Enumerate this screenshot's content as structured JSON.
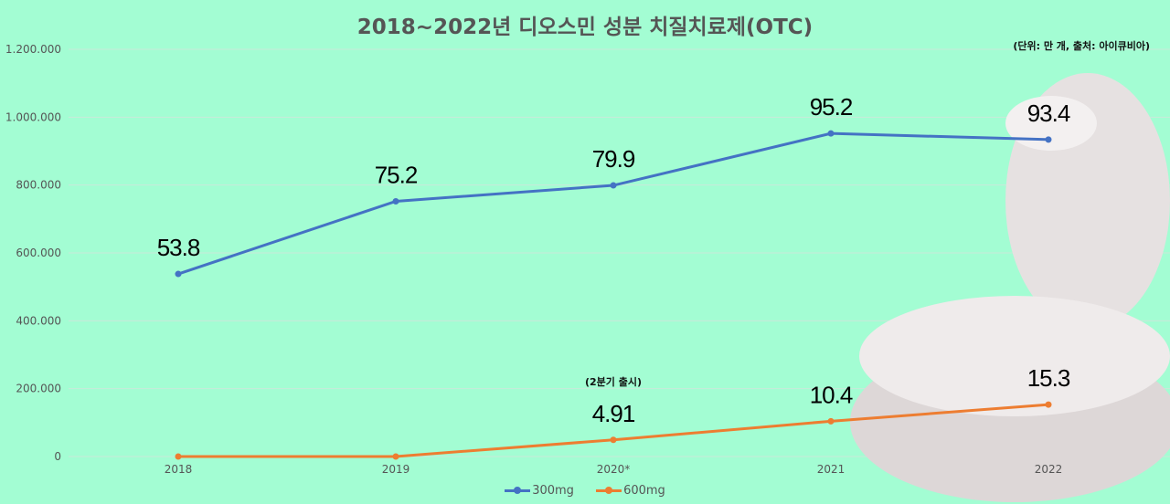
{
  "chart_data": {
    "type": "line",
    "title": "2018~2022년 디오스민 성분 치질치료제(OTC)",
    "unit_note": "(단위: 만 개, 출처: 아이큐비아)",
    "categories": [
      "2018",
      "2019",
      "2020*",
      "2021",
      "2022"
    ],
    "ylim": [
      0,
      1200000
    ],
    "yticks": [
      "0",
      "200.000",
      "400.000",
      "600.000",
      "800.000",
      "1.000.000",
      "1.200.000"
    ],
    "grid": true,
    "legend": "bottom",
    "series": [
      {
        "name": "300mg",
        "color": "#4472c4",
        "values": [
          538000,
          752000,
          799000,
          952000,
          934000
        ],
        "labels": [
          "53.8",
          "75.2",
          "79.9",
          "95.2",
          "93.4"
        ]
      },
      {
        "name": "600mg",
        "color": "#ed7d31",
        "values": [
          0,
          0,
          49100,
          104000,
          153000
        ],
        "labels": [
          "",
          "",
          "4.91",
          "10.4",
          "15.3"
        ]
      }
    ],
    "annotation": "(2분기 출시)"
  }
}
